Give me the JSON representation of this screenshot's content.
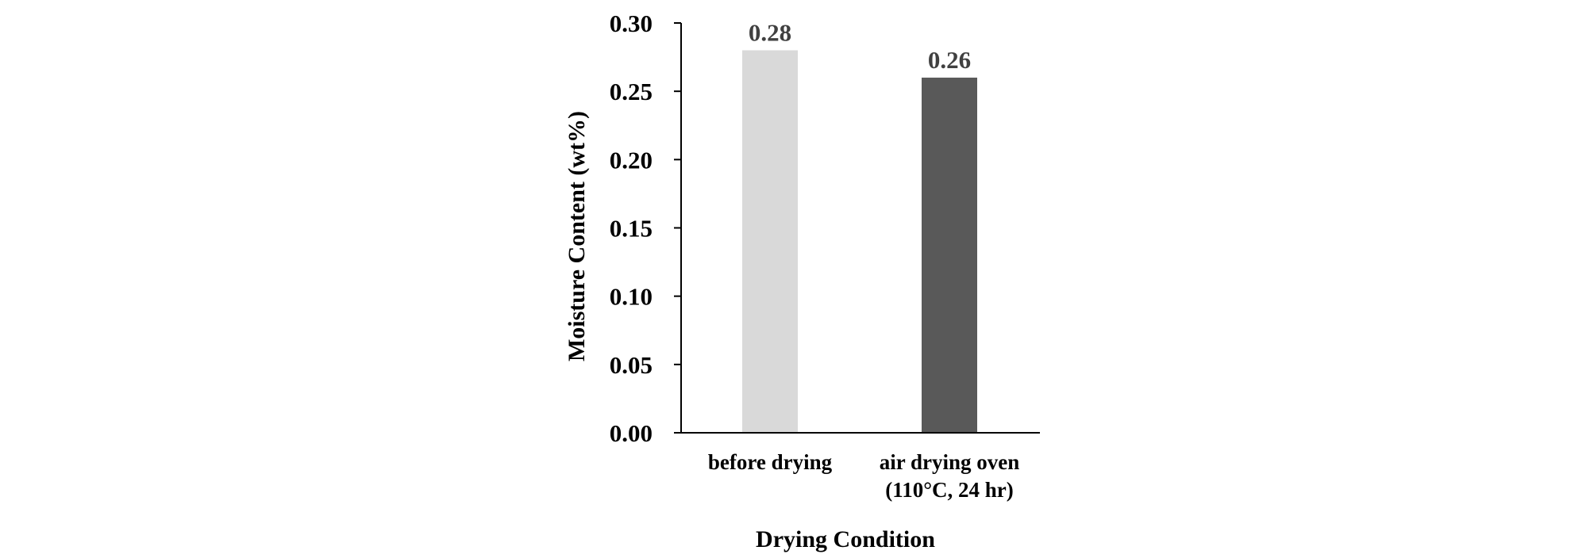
{
  "chart_data": {
    "type": "bar",
    "categories": [
      [
        "before drying"
      ],
      [
        "air drying oven",
        "(110°C, 24 hr)"
      ]
    ],
    "values": [
      0.28,
      0.26
    ],
    "data_labels": [
      "0.28",
      "0.26"
    ],
    "colors": [
      "#d9d9d9",
      "#595959"
    ],
    "title": "",
    "xlabel": "Drying Condition",
    "ylabel": "Moisture Content (wt%)",
    "ylim": [
      0,
      0.3
    ],
    "yticks": [
      "0.00",
      "0.05",
      "0.10",
      "0.15",
      "0.20",
      "0.25",
      "0.30"
    ],
    "grid": false,
    "legend": "none"
  }
}
